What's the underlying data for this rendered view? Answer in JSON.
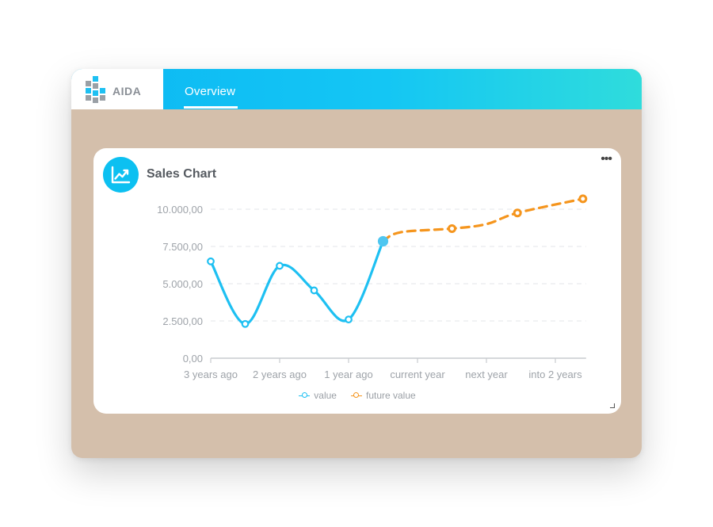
{
  "app": {
    "logo_text": "AIDA",
    "tabs": [
      {
        "label": "Overview",
        "active": true
      }
    ]
  },
  "colors": {
    "value": "#1ec0f2",
    "future": "#f5951d",
    "accent": "#0cc0f1",
    "background": "#d4bfab"
  },
  "card": {
    "title": "Sales Chart",
    "menu_label": "•••",
    "icon": "trend-chart-icon"
  },
  "chart_data": {
    "type": "line",
    "categories": [
      "3 years ago",
      "2 years ago",
      "1 year ago",
      "current year",
      "next year",
      "into 2 years"
    ],
    "y_ticks": [
      "0,00",
      "2.500,00",
      "5.000,00",
      "7.500,00",
      "10.000,00"
    ],
    "ylim": [
      0,
      10000
    ],
    "grid": true,
    "legend_position": "bottom",
    "series": [
      {
        "name": "value",
        "color": "#1ec0f2",
        "style": "solid",
        "smooth": true,
        "points": [
          {
            "x": 0,
            "y": 6500
          },
          {
            "x": 0.5,
            "y": 2300
          },
          {
            "x": 1,
            "y": 6200
          },
          {
            "x": 1.5,
            "y": 4550
          },
          {
            "x": 2,
            "y": 2600
          },
          {
            "x": 2.5,
            "y": 7850
          }
        ]
      },
      {
        "name": "future value",
        "color": "#f5951d",
        "style": "dashed",
        "smooth": true,
        "points": [
          {
            "x": 2.5,
            "y": 7850
          },
          {
            "x": 2.75,
            "y": 8450
          },
          {
            "x": 3.5,
            "y": 8700
          },
          {
            "x": 4,
            "y": 9000
          },
          {
            "x": 4.45,
            "y": 9750
          },
          {
            "x": 5.4,
            "y": 10700
          }
        ],
        "markers": [
          2,
          4,
          5
        ]
      }
    ]
  }
}
